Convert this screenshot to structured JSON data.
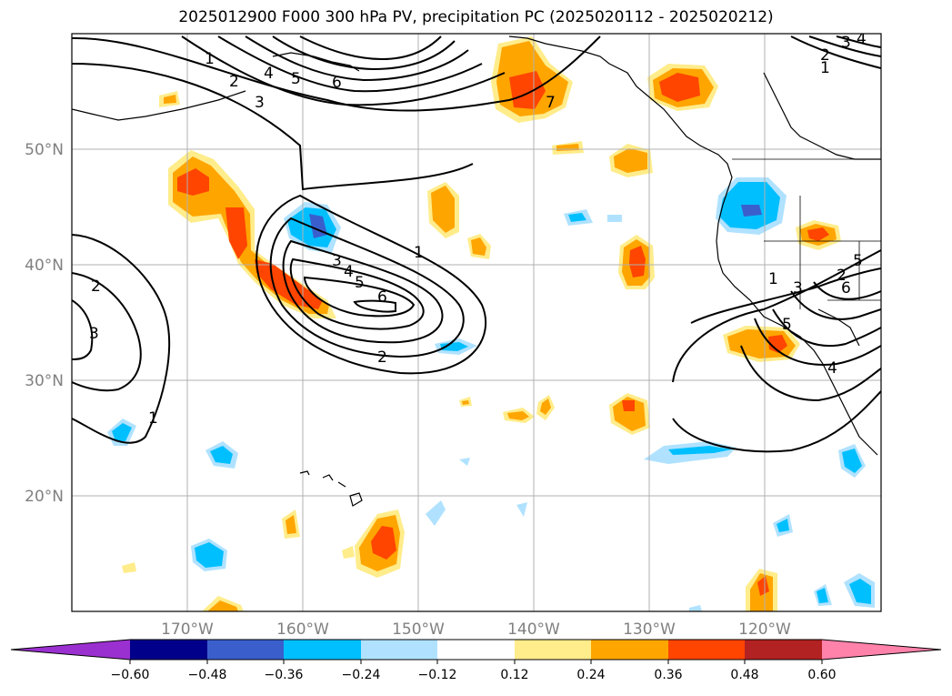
{
  "title": "2025012900 F000 300 hPa PV, precipitation PC (2025020112 - 2025020212)",
  "map": {
    "projection": "PlateCarree",
    "lon_range": [
      -180,
      -110
    ],
    "lat_range": [
      10,
      60
    ],
    "gridlines": true,
    "coastlines": true,
    "lon_labels": [
      "170°W",
      "160°W",
      "150°W",
      "140°W",
      "130°W",
      "120°W"
    ],
    "lat_labels": [
      "50°N",
      "40°N",
      "30°N",
      "20°N"
    ]
  },
  "pv_contours": {
    "levels": [
      1,
      2,
      3,
      4,
      5,
      6,
      7
    ],
    "labels_shown": [
      "1",
      "2",
      "3",
      "4",
      "5",
      "6",
      "7",
      "1",
      "2",
      "3",
      "4",
      "5",
      "6",
      "2",
      "3",
      "1",
      "1",
      "2",
      "3",
      "4",
      "5",
      "6",
      "4",
      "5",
      "1",
      "2",
      "3"
    ]
  },
  "colorbar": {
    "ticks": [
      "−0.60",
      "−0.48",
      "−0.36",
      "−0.24",
      "−0.12",
      "0.12",
      "0.24",
      "0.36",
      "0.48",
      "0.60"
    ],
    "colors": [
      "#9b30d0",
      "#00008b",
      "#3a5fcd",
      "#00bfff",
      "#b0e2ff",
      "#ffffff",
      "#ffec8b",
      "#ffa500",
      "#ff4500",
      "#b22222",
      "#ff82ab"
    ],
    "extend": "both"
  }
}
